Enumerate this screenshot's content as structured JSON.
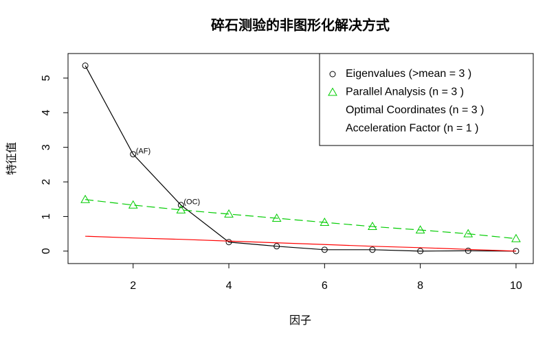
{
  "chart_data": {
    "type": "line",
    "title": "碎石测验的非图形化解决方式",
    "x_label": "因子",
    "y_label": "特征值",
    "x": [
      1,
      2,
      3,
      4,
      5,
      6,
      7,
      8,
      9,
      10
    ],
    "series": [
      {
        "name": "Eigenvalues (>mean  =  3 )",
        "color": "#000000",
        "marker": "circle",
        "line": "solid",
        "values": [
          5.36,
          2.8,
          1.33,
          0.26,
          0.14,
          0.04,
          0.04,
          0.0,
          0.01,
          0.0
        ]
      },
      {
        "name": "Parallel Analysis (n =  3 )",
        "color": "#00cc00",
        "marker": "triangle",
        "line": "dashed",
        "values": [
          1.49,
          1.33,
          1.19,
          1.07,
          0.95,
          0.83,
          0.71,
          0.61,
          0.5,
          0.36
        ]
      },
      {
        "name": "Optimal Coordinates (n =  3 )",
        "color": "#ff0000",
        "marker": "none",
        "line": "solid",
        "values": [
          0.43,
          0.38,
          0.34,
          0.29,
          0.24,
          0.19,
          0.14,
          0.1,
          0.05,
          0.0
        ]
      },
      {
        "name": "Acceleration Factor (n =  1 )",
        "color": "#0000ff",
        "marker": "none",
        "line": "none"
      }
    ],
    "annotations": [
      {
        "text": "(AF)",
        "point": 1,
        "color": "#0000ff"
      },
      {
        "text": "(OC)",
        "point": 2,
        "color": "#ff0000"
      }
    ],
    "xlim": [
      0.64,
      10.36
    ],
    "xticks": [
      2,
      4,
      6,
      8,
      10
    ],
    "ylim": [
      -0.36,
      5.71
    ],
    "yticks": [
      0,
      1,
      2,
      3,
      4,
      5
    ],
    "legend": "top-right"
  }
}
